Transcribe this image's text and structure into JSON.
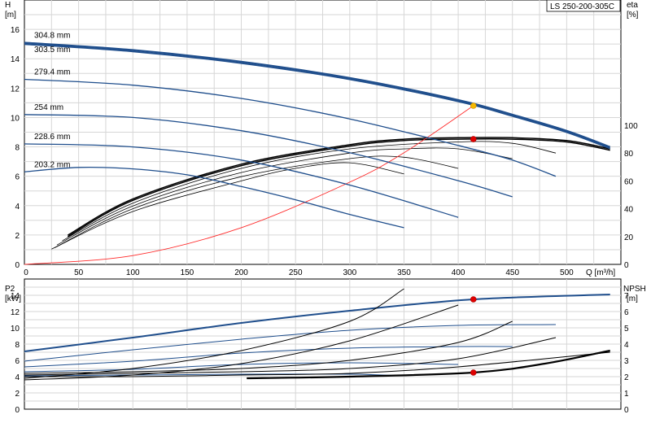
{
  "chart_data": [
    {
      "type": "line",
      "title": "LS 250-200-305C",
      "x_axis": {
        "label": "Q [m³/h]",
        "range": [
          0,
          550
        ],
        "ticks": [
          0,
          50,
          100,
          150,
          200,
          250,
          300,
          350,
          400,
          450,
          500
        ]
      },
      "y_axis_left": {
        "label_line1": "H",
        "label_line2": "[m]",
        "range": [
          0,
          18
        ],
        "ticks": [
          0,
          2,
          4,
          6,
          8,
          10,
          12,
          14,
          16
        ]
      },
      "y_axis_right": {
        "label_line1": "eta",
        "label_line2": "[%]",
        "range": [
          0,
          190
        ],
        "ticks": [
          0,
          20,
          40,
          60,
          80,
          100
        ]
      },
      "grid": true,
      "head_series": [
        {
          "name": "304.8 mm",
          "x": [
            0,
            100,
            200,
            300,
            400,
            450,
            500,
            540
          ],
          "y": [
            15.1,
            14.6,
            13.8,
            12.7,
            11.2,
            10.2,
            9.1,
            8.0
          ]
        },
        {
          "name": "303.5 mm",
          "x": [
            0,
            100,
            200,
            300,
            400,
            450,
            500,
            540
          ],
          "y": [
            15.0,
            14.5,
            13.7,
            12.6,
            11.1,
            10.1,
            9.0,
            7.9
          ]
        },
        {
          "name": "279.4 mm",
          "x": [
            0,
            100,
            200,
            300,
            400,
            450,
            490
          ],
          "y": [
            12.6,
            12.2,
            11.3,
            9.9,
            8.1,
            7.1,
            6.0
          ]
        },
        {
          "name": "254 mm",
          "x": [
            0,
            100,
            200,
            300,
            400,
            450
          ],
          "y": [
            10.2,
            10.0,
            9.1,
            7.6,
            5.7,
            4.6
          ]
        },
        {
          "name": "228.6 mm",
          "x": [
            0,
            100,
            200,
            300,
            400
          ],
          "y": [
            8.2,
            8.0,
            7.1,
            5.4,
            3.2
          ]
        },
        {
          "name": "203.2 mm",
          "x": [
            0,
            50,
            100,
            150,
            200,
            250,
            300,
            350
          ],
          "y": [
            6.3,
            6.6,
            6.5,
            6.1,
            5.3,
            4.4,
            3.4,
            2.5
          ]
        }
      ],
      "efficiency_series": [
        {
          "x": [
            40,
            100,
            200,
            300,
            350,
            400,
            450,
            500,
            540
          ],
          "eta": [
            21,
            47,
            72,
            86,
            90,
            91,
            91,
            89,
            83
          ]
        },
        {
          "x": [
            40,
            100,
            200,
            300,
            350,
            400,
            450,
            500,
            540
          ],
          "eta": [
            20,
            46,
            71,
            85,
            89,
            90,
            90,
            88,
            82
          ]
        },
        {
          "x": [
            35,
            100,
            200,
            300,
            400,
            450,
            490
          ],
          "eta": [
            17,
            44,
            69,
            83,
            88,
            87,
            80
          ]
        },
        {
          "x": [
            30,
            100,
            200,
            300,
            350,
            400,
            450
          ],
          "eta": [
            14,
            42,
            66,
            80,
            83,
            83,
            76
          ]
        },
        {
          "x": [
            28,
            100,
            200,
            300,
            350,
            400
          ],
          "eta": [
            12,
            40,
            63,
            76,
            77,
            69
          ]
        },
        {
          "x": [
            25,
            100,
            200,
            250,
            300,
            350
          ],
          "eta": [
            11,
            38,
            60,
            69,
            73,
            65
          ]
        }
      ],
      "system_curve": {
        "x": [
          0,
          100,
          200,
          300,
          350,
          414
        ],
        "y": [
          0,
          0.6,
          2.5,
          5.6,
          7.6,
          10.8
        ]
      },
      "operating_points": [
        {
          "axis": "H",
          "x": 414,
          "y": 10.8,
          "color": "#f5b800"
        },
        {
          "axis": "eta",
          "x": 414,
          "y": 90,
          "color": "#e00000"
        }
      ]
    },
    {
      "type": "line",
      "x_axis": {
        "range": [
          0,
          550
        ]
      },
      "y_axis_left": {
        "label_line1": "P2",
        "label_line2": "[kW]",
        "range": [
          0,
          16
        ],
        "ticks": [
          0,
          2,
          4,
          6,
          8,
          10,
          12,
          14
        ]
      },
      "y_axis_right": {
        "label_line1": "NPSH",
        "label_line2": "[m]",
        "range": [
          0,
          8
        ],
        "ticks": [
          0,
          1,
          2,
          3,
          4,
          5,
          6,
          7
        ]
      },
      "grid": true,
      "power_series": [
        {
          "x": [
            0,
            100,
            200,
            300,
            414,
            540
          ],
          "y": [
            7.1,
            8.8,
            10.6,
            12.1,
            13.5,
            14.1
          ]
        },
        {
          "x": [
            0,
            100,
            200,
            300,
            400,
            490
          ],
          "y": [
            5.9,
            7.3,
            8.6,
            9.7,
            10.3,
            10.4
          ]
        },
        {
          "x": [
            0,
            100,
            200,
            300,
            400,
            450
          ],
          "y": [
            5.2,
            5.9,
            6.9,
            7.5,
            7.7,
            7.7
          ]
        },
        {
          "x": [
            0,
            100,
            200,
            300,
            400
          ],
          "y": [
            4.6,
            4.9,
            5.5,
            5.7,
            5.5
          ]
        },
        {
          "x": [
            0,
            100,
            200,
            300,
            350
          ],
          "y": [
            4.1,
            4.2,
            4.3,
            4.3,
            4.1
          ]
        }
      ],
      "npsh_series": [
        {
          "x": [
            0,
            100,
            200,
            300,
            350
          ],
          "npsh": [
            1.9,
            2.5,
            3.6,
            5.4,
            7.4
          ]
        },
        {
          "x": [
            0,
            100,
            200,
            300,
            400
          ],
          "npsh": [
            1.8,
            2.1,
            2.8,
            4.2,
            6.4
          ]
        },
        {
          "x": [
            0,
            100,
            200,
            300,
            400,
            450
          ],
          "npsh": [
            2.2,
            2.3,
            2.5,
            3.0,
            4.1,
            5.4
          ]
        },
        {
          "x": [
            0,
            100,
            200,
            300,
            400,
            490
          ],
          "npsh": [
            2.1,
            2.2,
            2.3,
            2.5,
            3.1,
            4.4
          ]
        },
        {
          "x": [
            0,
            100,
            200,
            300,
            400,
            540
          ],
          "npsh": [
            2.0,
            2.0,
            2.1,
            2.2,
            2.6,
            3.5
          ]
        },
        {
          "x": [
            205,
            300,
            414,
            480,
            540
          ],
          "npsh": [
            1.9,
            2.0,
            2.25,
            2.8,
            3.6
          ]
        }
      ],
      "operating_points": [
        {
          "axis": "P2",
          "x": 414,
          "y": 13.5,
          "color": "#e00000"
        },
        {
          "axis": "NPSH",
          "x": 414,
          "y": 2.25,
          "color": "#e00000"
        }
      ]
    }
  ]
}
